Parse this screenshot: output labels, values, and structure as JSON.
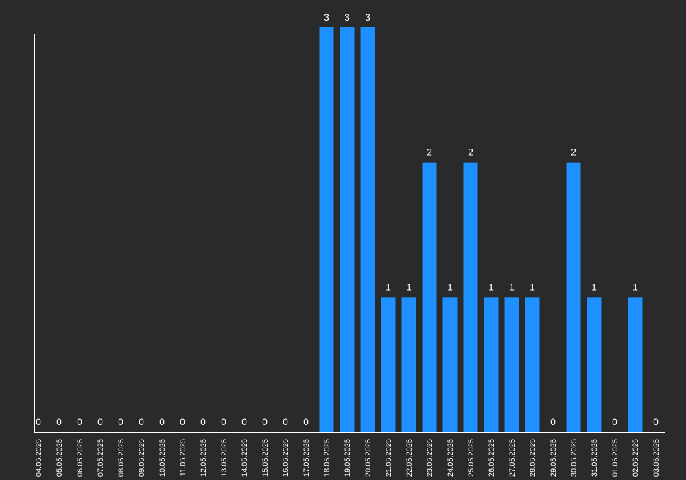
{
  "chart_data": {
    "type": "bar",
    "title": "",
    "xlabel": "",
    "ylabel": "",
    "ylim": [
      0,
      3
    ],
    "grid": false,
    "colors": {
      "background": "#2a2a2a",
      "bar": "#1e90ff",
      "axis": "#ffffff",
      "text": "#ffffff"
    },
    "categories": [
      "04.05.2025",
      "05.05.2025",
      "06.05.2025",
      "07.05.2025",
      "08.05.2025",
      "09.05.2025",
      "10.05.2025",
      "11.05.2025",
      "12.05.2025",
      "13.05.2025",
      "14.05.2025",
      "15.05.2025",
      "16.05.2025",
      "17.05.2025",
      "18.05.2025",
      "19.05.2025",
      "20.05.2025",
      "21.05.2025",
      "22.05.2025",
      "23.05.2025",
      "24.05.2025",
      "25.05.2025",
      "26.05.2025",
      "27.05.2025",
      "28.05.2025",
      "29.05.2025",
      "30.05.2025",
      "31.05.2025",
      "01.06.2025",
      "02.06.2025",
      "03.06.2025"
    ],
    "values": [
      0,
      0,
      0,
      0,
      0,
      0,
      0,
      0,
      0,
      0,
      0,
      0,
      0,
      0,
      3,
      3,
      3,
      1,
      1,
      2,
      1,
      2,
      1,
      1,
      1,
      0,
      2,
      1,
      0,
      1,
      0
    ]
  }
}
